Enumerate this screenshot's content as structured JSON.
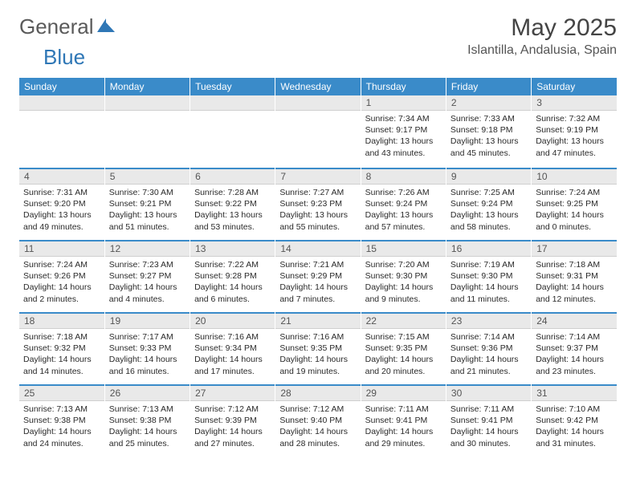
{
  "logo": {
    "general": "General",
    "blue": "Blue"
  },
  "colors": {
    "header_bg": "#3a8bc9",
    "header_text": "#ffffff",
    "daynum_bg": "#e9e9e9",
    "daynum_text": "#555555",
    "body_text": "#2a2a2a",
    "accent_blue": "#2f77b6",
    "logo_gray": "#5a5a5a",
    "title_gray": "#444444",
    "page_bg": "#ffffff"
  },
  "typography": {
    "title_fontsize": 30,
    "location_fontsize": 16,
    "header_fontsize": 12,
    "daynum_fontsize": 12,
    "dayinfo_fontsize": 10.5
  },
  "title": {
    "month": "May 2025",
    "location": "Islantilla, Andalusia, Spain"
  },
  "weekdays": [
    "Sunday",
    "Monday",
    "Tuesday",
    "Wednesday",
    "Thursday",
    "Friday",
    "Saturday"
  ],
  "calendar": {
    "type": "table",
    "columns": 7,
    "rows": 5,
    "start_weekday_index": 4,
    "days": [
      {
        "n": "1",
        "sr": "7:34 AM",
        "ss": "9:17 PM",
        "dl": "13 hours and 43 minutes."
      },
      {
        "n": "2",
        "sr": "7:33 AM",
        "ss": "9:18 PM",
        "dl": "13 hours and 45 minutes."
      },
      {
        "n": "3",
        "sr": "7:32 AM",
        "ss": "9:19 PM",
        "dl": "13 hours and 47 minutes."
      },
      {
        "n": "4",
        "sr": "7:31 AM",
        "ss": "9:20 PM",
        "dl": "13 hours and 49 minutes."
      },
      {
        "n": "5",
        "sr": "7:30 AM",
        "ss": "9:21 PM",
        "dl": "13 hours and 51 minutes."
      },
      {
        "n": "6",
        "sr": "7:28 AM",
        "ss": "9:22 PM",
        "dl": "13 hours and 53 minutes."
      },
      {
        "n": "7",
        "sr": "7:27 AM",
        "ss": "9:23 PM",
        "dl": "13 hours and 55 minutes."
      },
      {
        "n": "8",
        "sr": "7:26 AM",
        "ss": "9:24 PM",
        "dl": "13 hours and 57 minutes."
      },
      {
        "n": "9",
        "sr": "7:25 AM",
        "ss": "9:24 PM",
        "dl": "13 hours and 58 minutes."
      },
      {
        "n": "10",
        "sr": "7:24 AM",
        "ss": "9:25 PM",
        "dl": "14 hours and 0 minutes."
      },
      {
        "n": "11",
        "sr": "7:24 AM",
        "ss": "9:26 PM",
        "dl": "14 hours and 2 minutes."
      },
      {
        "n": "12",
        "sr": "7:23 AM",
        "ss": "9:27 PM",
        "dl": "14 hours and 4 minutes."
      },
      {
        "n": "13",
        "sr": "7:22 AM",
        "ss": "9:28 PM",
        "dl": "14 hours and 6 minutes."
      },
      {
        "n": "14",
        "sr": "7:21 AM",
        "ss": "9:29 PM",
        "dl": "14 hours and 7 minutes."
      },
      {
        "n": "15",
        "sr": "7:20 AM",
        "ss": "9:30 PM",
        "dl": "14 hours and 9 minutes."
      },
      {
        "n": "16",
        "sr": "7:19 AM",
        "ss": "9:30 PM",
        "dl": "14 hours and 11 minutes."
      },
      {
        "n": "17",
        "sr": "7:18 AM",
        "ss": "9:31 PM",
        "dl": "14 hours and 12 minutes."
      },
      {
        "n": "18",
        "sr": "7:18 AM",
        "ss": "9:32 PM",
        "dl": "14 hours and 14 minutes."
      },
      {
        "n": "19",
        "sr": "7:17 AM",
        "ss": "9:33 PM",
        "dl": "14 hours and 16 minutes."
      },
      {
        "n": "20",
        "sr": "7:16 AM",
        "ss": "9:34 PM",
        "dl": "14 hours and 17 minutes."
      },
      {
        "n": "21",
        "sr": "7:16 AM",
        "ss": "9:35 PM",
        "dl": "14 hours and 19 minutes."
      },
      {
        "n": "22",
        "sr": "7:15 AM",
        "ss": "9:35 PM",
        "dl": "14 hours and 20 minutes."
      },
      {
        "n": "23",
        "sr": "7:14 AM",
        "ss": "9:36 PM",
        "dl": "14 hours and 21 minutes."
      },
      {
        "n": "24",
        "sr": "7:14 AM",
        "ss": "9:37 PM",
        "dl": "14 hours and 23 minutes."
      },
      {
        "n": "25",
        "sr": "7:13 AM",
        "ss": "9:38 PM",
        "dl": "14 hours and 24 minutes."
      },
      {
        "n": "26",
        "sr": "7:13 AM",
        "ss": "9:38 PM",
        "dl": "14 hours and 25 minutes."
      },
      {
        "n": "27",
        "sr": "7:12 AM",
        "ss": "9:39 PM",
        "dl": "14 hours and 27 minutes."
      },
      {
        "n": "28",
        "sr": "7:12 AM",
        "ss": "9:40 PM",
        "dl": "14 hours and 28 minutes."
      },
      {
        "n": "29",
        "sr": "7:11 AM",
        "ss": "9:41 PM",
        "dl": "14 hours and 29 minutes."
      },
      {
        "n": "30",
        "sr": "7:11 AM",
        "ss": "9:41 PM",
        "dl": "14 hours and 30 minutes."
      },
      {
        "n": "31",
        "sr": "7:10 AM",
        "ss": "9:42 PM",
        "dl": "14 hours and 31 minutes."
      }
    ],
    "labels": {
      "sunrise": "Sunrise: ",
      "sunset": "Sunset: ",
      "daylight": "Daylight: "
    }
  }
}
